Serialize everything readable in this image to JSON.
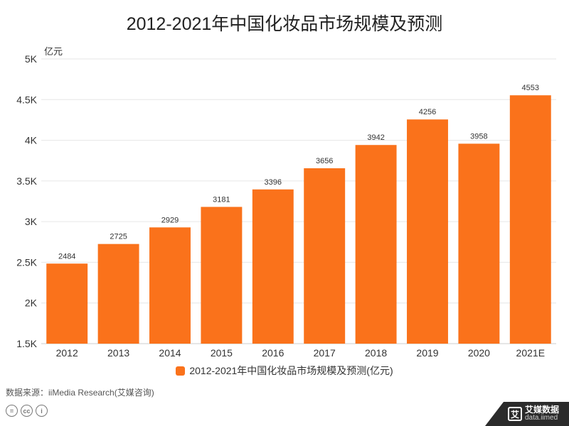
{
  "title": "2012-2021年中国化妆品市场规模及预测",
  "unit_label": "亿元",
  "legend_label": "2012-2021年中国化妆品市场规模及预测(亿元)",
  "source": "数据来源：iiMedia Research(艾媒咨询)",
  "brand": {
    "name": "艾媒数据",
    "url": "data.iimed",
    "logo_glyph": "艾"
  },
  "cc_icons": [
    "=",
    "cc",
    "i"
  ],
  "colors": {
    "bar": "#fa721b",
    "grid": "#e6e6e6",
    "axis": "#333333"
  },
  "chart_data": {
    "type": "bar",
    "title": "2012-2021年中国化妆品市场规模及预测",
    "ylabel": "亿元",
    "categories": [
      "2012",
      "2013",
      "2014",
      "2015",
      "2016",
      "2017",
      "2018",
      "2019",
      "2020",
      "2021E"
    ],
    "series": [
      {
        "name": "2012-2021年中国化妆品市场规模及预测(亿元)",
        "values": [
          2484,
          2725,
          2929,
          3181,
          3396,
          3656,
          3942,
          4256,
          3958,
          4553
        ]
      }
    ],
    "ylim": [
      1500,
      5000
    ],
    "yticks": [
      1500,
      2000,
      2500,
      3000,
      3500,
      4000,
      4500,
      5000
    ],
    "ytick_labels": [
      "1.5K",
      "2K",
      "2.5K",
      "3K",
      "3.5K",
      "4K",
      "4.5K",
      "5K"
    ],
    "grid": true,
    "legend_position": "bottom",
    "data_labels": true
  }
}
